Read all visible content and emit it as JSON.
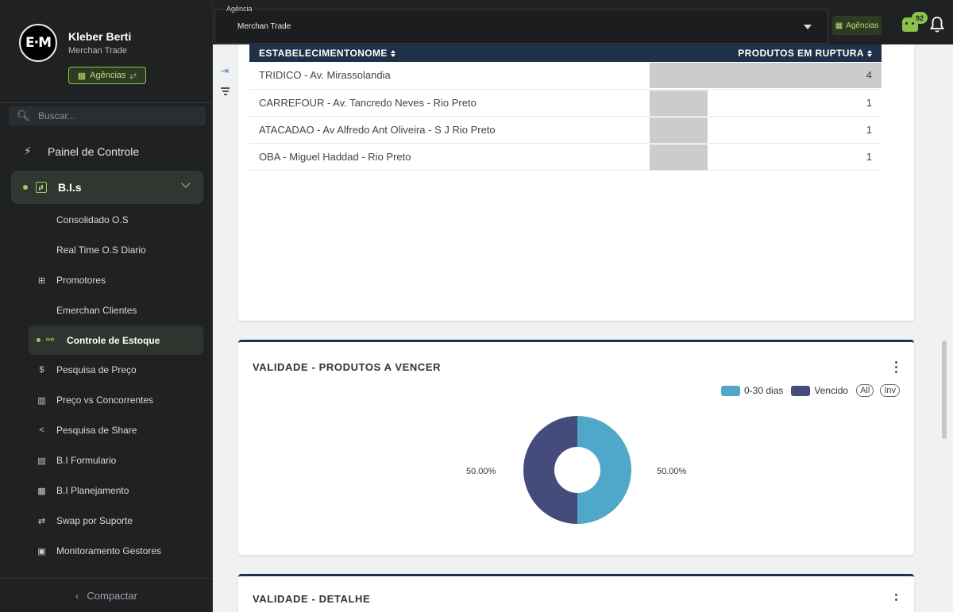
{
  "profile": {
    "name": "Kleber Berti",
    "org": "Merchan Trade",
    "agencias_label": "Agências",
    "logo_text": "E·M"
  },
  "search": {
    "placeholder": "Buscar..."
  },
  "nav": {
    "painel": "Painel de Controle",
    "group": "B.I.s",
    "items": [
      "Consolidado O.S",
      "Real Time O.S Diario",
      "Promotores",
      "Emerchan Clientes",
      "Controle de Estoque",
      "Pesquisa de Preço",
      "Preço vs Concorrentes",
      "Pesquisa de Share",
      "B.I Formulario",
      "B.I Planejamento",
      "Swap por Suporte",
      "Monitoramento Gestores"
    ],
    "compactar": "Compactar"
  },
  "header": {
    "agencia_label": "Agência",
    "agencia_value": "Merchan Trade",
    "agencias_btn": "Agências",
    "notifications": "92"
  },
  "ruptura": {
    "columns": [
      "ESTABELECIMENTONOME",
      "PRODUTOS EM RUPTURA"
    ],
    "rows": [
      {
        "name": "TRIDICO - Av. Mirassolandia",
        "value": 4
      },
      {
        "name": "CARREFOUR - Av. Tancredo Neves - Rio Preto",
        "value": 1
      },
      {
        "name": "ATACADAO - Av Alfredo Ant Oliveira - S J Rio Preto",
        "value": 1
      },
      {
        "name": "OBA - Miguel Haddad - Rio Preto",
        "value": 1
      }
    ],
    "max": 4
  },
  "validade": {
    "title": "VALIDADE - PRODUTOS A VENCER",
    "legend": [
      "0-30 dias",
      "Vencido"
    ],
    "all_label": "All",
    "inv_label": "Inv"
  },
  "chart_data": {
    "type": "pie",
    "donut": true,
    "categories": [
      "0-30 dias",
      "Vencido"
    ],
    "values": [
      50.0,
      50.0
    ],
    "labels": [
      "50.00%",
      "50.00%"
    ],
    "colors": [
      "#4fa8c9",
      "#454c7c"
    ],
    "legend_position": "top-right"
  },
  "detalhe": {
    "title": "VALIDADE - DETALHE"
  }
}
